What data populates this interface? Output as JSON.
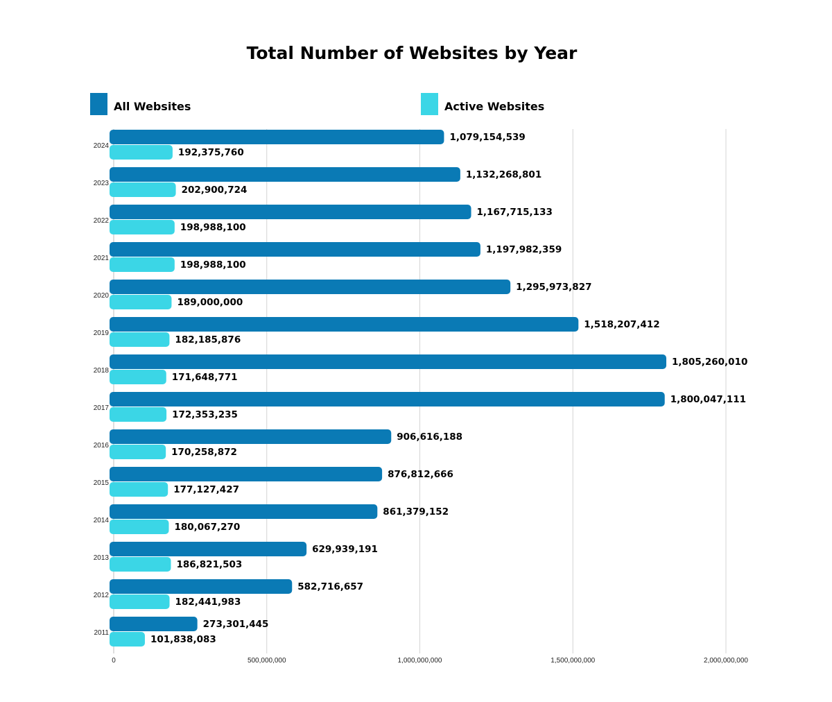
{
  "chart_data": {
    "type": "bar",
    "orientation": "horizontal",
    "title": "Total Number of Websites by Year",
    "categories": [
      "2024",
      "2023",
      "2022",
      "2021",
      "2020",
      "2019",
      "2018",
      "2017",
      "2016",
      "2015",
      "2014",
      "2013",
      "2012",
      "2011"
    ],
    "series": [
      {
        "name": "All Websites",
        "color": "#0a7ab5",
        "values": [
          1079154539,
          1132268801,
          1167715133,
          1197982359,
          1295973827,
          1518207412,
          1805260010,
          1800047111,
          906616188,
          876812666,
          861379152,
          629939191,
          582716657,
          273301445
        ],
        "labels": [
          "1,079,154,539",
          "1,132,268,801",
          "1,167,715,133",
          "1,197,982,359",
          "1,295,973,827",
          "1,518,207,412",
          "1,805,260,010",
          "1,800,047,111",
          "906,616,188",
          "876,812,666",
          "861,379,152",
          "629,939,191",
          "582,716,657",
          "273,301,445"
        ]
      },
      {
        "name": "Active Websites",
        "color": "#3bd6e6",
        "values": [
          192375760,
          202900724,
          198988100,
          198988100,
          189000000,
          182185876,
          171648771,
          172353235,
          170258872,
          177127427,
          180067270,
          186821503,
          182441983,
          101838083
        ],
        "labels": [
          "192,375,760",
          "202,900,724",
          "198,988,100",
          "198,988,100",
          "189,000,000",
          "182,185,876",
          "171,648,771",
          "172,353,235",
          "170,258,872",
          "177,127,427",
          "180,067,270",
          "186,821,503",
          "182,441,983",
          "101,838,083"
        ]
      }
    ],
    "xlim": [
      0,
      2000000000
    ],
    "xticks": [
      0,
      500000000,
      1000000000,
      1500000000,
      2000000000
    ],
    "xtick_labels": [
      "0",
      "500,000,000",
      "1,000,000,000",
      "1,500,000,000",
      "2,000,000,000"
    ],
    "grid": true,
    "legend_position": "top"
  }
}
